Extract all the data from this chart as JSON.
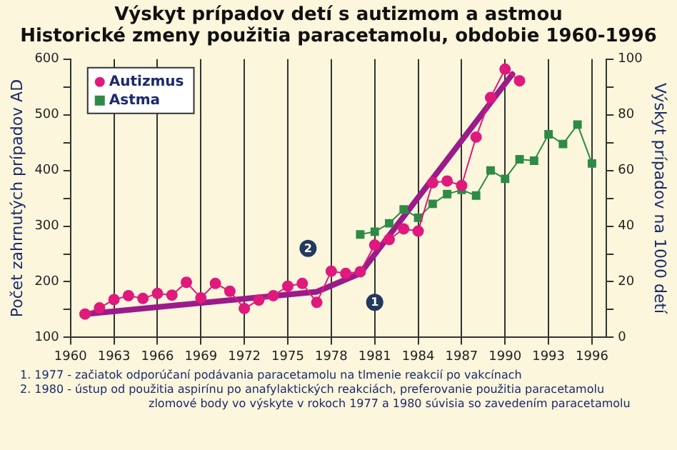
{
  "chart_data": {
    "type": "line",
    "title": "Výskyt prípadov detí s autizmom a astmou",
    "subtitle": "Historické zmeny použitia paracetamolu, obdobie 1960-1996",
    "ylabel": "Počet zahrnutých prípadov AD",
    "y2label": "Výskyt prípadov na 1000 detí",
    "xlim": [
      1960,
      1997
    ],
    "xticks": [
      1960,
      1963,
      1966,
      1969,
      1972,
      1975,
      1978,
      1981,
      1984,
      1987,
      1990,
      1993,
      1996
    ],
    "ylim": [
      100,
      600
    ],
    "yticks": [
      100,
      {
        "value": 150,
        "label": null
      },
      200,
      {
        "value": 250,
        "label": null
      },
      300,
      {
        "value": 350,
        "label": null
      },
      400,
      {
        "value": 450,
        "label": null
      },
      500,
      {
        "value": 550,
        "label": null
      },
      600
    ],
    "y2lim": [
      0,
      100
    ],
    "y2ticks": [
      0,
      {
        "value": 10,
        "label": null
      },
      20,
      {
        "value": 30,
        "label": null
      },
      40,
      {
        "value": 50,
        "label": null
      },
      60,
      {
        "value": 70,
        "label": null
      },
      80,
      {
        "value": 90,
        "label": null
      },
      100
    ],
    "grid": "x",
    "legend": "top left",
    "series": [
      {
        "name": "Autizmus",
        "color": "#e0197d",
        "marker": "circle",
        "x": [
          1961,
          1962,
          1963,
          1964,
          1965,
          1966,
          1967,
          1968,
          1969,
          1970,
          1971,
          1972,
          1973,
          1974,
          1975,
          1976,
          1977,
          1978,
          1979,
          1980,
          1981,
          1982,
          1983,
          1984,
          1985,
          1986,
          1987,
          1988,
          1989,
          1990,
          1991
        ],
        "values": [
          142,
          153,
          168,
          175,
          170,
          179,
          176,
          199,
          171,
          197,
          183,
          152,
          167,
          175,
          192,
          197,
          163,
          219,
          215,
          218,
          266,
          276,
          295,
          291,
          378,
          381,
          373,
          460,
          531,
          582,
          561
        ]
      },
      {
        "name": "Astma",
        "color": "#2e8b46",
        "marker": "square",
        "axis": "y2",
        "x": [
          1980,
          1981,
          1982,
          1983,
          1984,
          1985,
          1986,
          1987,
          1988,
          1989,
          1990,
          1991,
          1992,
          1993,
          1994,
          1995,
          1996
        ],
        "values": [
          37,
          38,
          41,
          46,
          43,
          48,
          51.5,
          53,
          51,
          60,
          57,
          64,
          63.5,
          73,
          69.5,
          76.5,
          62.5
        ]
      },
      {
        "type": "line",
        "color": "#9b1b8a",
        "marker": "none",
        "x": [
          1961,
          1977,
          1980,
          1990.5
        ],
        "values": [
          142,
          182,
          215,
          573
        ]
      }
    ],
    "annotations": [
      {
        "text": "1",
        "x": 1981,
        "y": 163
      },
      {
        "text": "2",
        "x": 1976.4,
        "y": 260
      },
      "1. 1977 - začiatok odporúčaní podávania paracetamolu na tlmenie reakcií po vakcínach",
      "2. 1980 - ústup od použitia aspirínu po anafylaktických reakciách, preferovanie použitia paracetamolu",
      "zlomové body vo výskyte v rokoch 1977 a 1980 súvisia so zavedením paracetamolu"
    ]
  }
}
